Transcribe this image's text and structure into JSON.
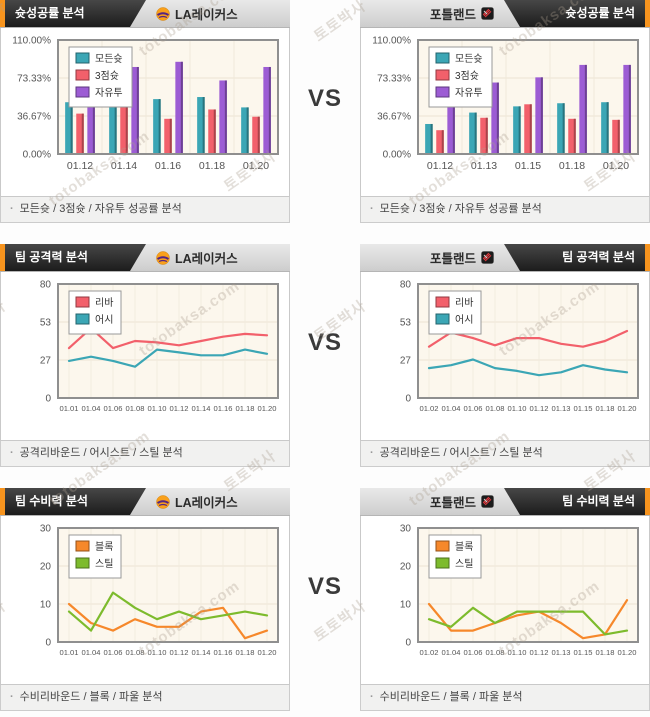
{
  "vs_label": "VS",
  "footer_bullet": "·",
  "watermark": {
    "line1": "토토박사",
    "line2": "totobaksa.com"
  },
  "teams": {
    "left": {
      "name": "LA레이커스"
    },
    "right": {
      "name": "포틀랜드"
    }
  },
  "sections": [
    {
      "title": "슛성공률 분석",
      "footer": "모든슛 / 3점슛 / 자유투 성공률 분석"
    },
    {
      "title": "팀 공격력 분석",
      "footer": "공격리바운드 / 어시스트 / 스틸 분석"
    },
    {
      "title": "팀 수비력 분석",
      "footer": "수비리바운드 / 블록 / 파울 분석"
    }
  ],
  "chart_data": [
    {
      "type": "bar",
      "team": "LA레이커스",
      "title": "슛성공률 분석",
      "categories": [
        "01.12",
        "01.14",
        "01.16",
        "01.18",
        "01.20"
      ],
      "ylim": [
        0,
        110
      ],
      "yticks": [
        "0.00%",
        "36.67%",
        "73.33%",
        "110.00%"
      ],
      "legend_position": "top-left",
      "grid": true,
      "series": [
        {
          "name": "모든슛",
          "color": "#3BA6B5",
          "values": [
            49,
            49,
            52,
            54,
            44
          ]
        },
        {
          "name": "3점슛",
          "color": "#F2606B",
          "values": [
            38,
            44,
            33,
            42,
            35
          ]
        },
        {
          "name": "자유투",
          "color": "#9C5CD4",
          "values": [
            59,
            83,
            88,
            70,
            83
          ]
        }
      ]
    },
    {
      "type": "bar",
      "team": "포틀랜드",
      "title": "슛성공률 분석",
      "categories": [
        "01.12",
        "01.13",
        "01.15",
        "01.18",
        "01.20"
      ],
      "ylim": [
        0,
        110
      ],
      "yticks": [
        "0.00%",
        "36.67%",
        "73.33%",
        "110.00%"
      ],
      "legend_position": "top-left",
      "grid": true,
      "series": [
        {
          "name": "모든슛",
          "color": "#3BA6B5",
          "values": [
            28,
            39,
            45,
            48,
            49
          ]
        },
        {
          "name": "3점슛",
          "color": "#F2606B",
          "values": [
            22,
            34,
            47,
            33,
            32
          ]
        },
        {
          "name": "자유투",
          "color": "#9C5CD4",
          "values": [
            58,
            68,
            73,
            85,
            85
          ]
        }
      ]
    },
    {
      "type": "line",
      "team": "LA레이커스",
      "title": "팀 공격력 분석",
      "categories": [
        "01.01",
        "01.04",
        "01.06",
        "01.08",
        "01.10",
        "01.12",
        "01.14",
        "01.16",
        "01.18",
        "01.20"
      ],
      "ylim": [
        0,
        80
      ],
      "yticks": [
        "0",
        "27",
        "53",
        "80"
      ],
      "legend_position": "top-left",
      "grid": true,
      "series": [
        {
          "name": "리바",
          "color": "#F2606B",
          "values": [
            35,
            49,
            35,
            40,
            39,
            37,
            40,
            43,
            45,
            44
          ]
        },
        {
          "name": "어시",
          "color": "#3BA6B5",
          "values": [
            26,
            29,
            26,
            22,
            34,
            32,
            30,
            30,
            34,
            31
          ]
        }
      ]
    },
    {
      "type": "line",
      "team": "포틀랜드",
      "title": "팀 공격력 분석",
      "categories": [
        "01.02",
        "01.04",
        "01.06",
        "01.08",
        "01.10",
        "01.12",
        "01.13",
        "01.15",
        "01.18",
        "01.20"
      ],
      "ylim": [
        0,
        80
      ],
      "yticks": [
        "0",
        "27",
        "53",
        "80"
      ],
      "legend_position": "top-left",
      "grid": true,
      "series": [
        {
          "name": "리바",
          "color": "#F2606B",
          "values": [
            36,
            46,
            42,
            37,
            42,
            42,
            38,
            36,
            40,
            47
          ]
        },
        {
          "name": "어시",
          "color": "#3BA6B5",
          "values": [
            21,
            23,
            27,
            21,
            19,
            16,
            18,
            23,
            20,
            18
          ]
        }
      ]
    },
    {
      "type": "line",
      "team": "LA레이커스",
      "title": "팀 수비력 분석",
      "categories": [
        "01.01",
        "01.04",
        "01.06",
        "01.08",
        "01.10",
        "01.12",
        "01.14",
        "01.16",
        "01.18",
        "01.20"
      ],
      "ylim": [
        0,
        30
      ],
      "yticks": [
        "0",
        "10",
        "20",
        "30"
      ],
      "legend_position": "top-left",
      "grid": true,
      "series": [
        {
          "name": "블록",
          "color": "#F6882B",
          "values": [
            10,
            5,
            3,
            6,
            4,
            4,
            8,
            9,
            1,
            3
          ]
        },
        {
          "name": "스틸",
          "color": "#7DBB2D",
          "values": [
            8,
            3,
            13,
            9,
            6,
            8,
            6,
            7,
            8,
            7
          ]
        }
      ]
    },
    {
      "type": "line",
      "team": "포틀랜드",
      "title": "팀 수비력 분석",
      "categories": [
        "01.02",
        "01.04",
        "01.06",
        "01.08",
        "01.10",
        "01.12",
        "01.13",
        "01.15",
        "01.18",
        "01.20"
      ],
      "ylim": [
        0,
        30
      ],
      "yticks": [
        "0",
        "10",
        "20",
        "30"
      ],
      "legend_position": "top-left",
      "grid": true,
      "series": [
        {
          "name": "블록",
          "color": "#F6882B",
          "values": [
            10,
            3,
            3,
            5,
            7,
            8,
            5,
            1,
            2,
            11
          ]
        },
        {
          "name": "스틸",
          "color": "#7DBB2D",
          "values": [
            6,
            4,
            9,
            5,
            8,
            8,
            8,
            8,
            2,
            3
          ]
        }
      ]
    }
  ]
}
